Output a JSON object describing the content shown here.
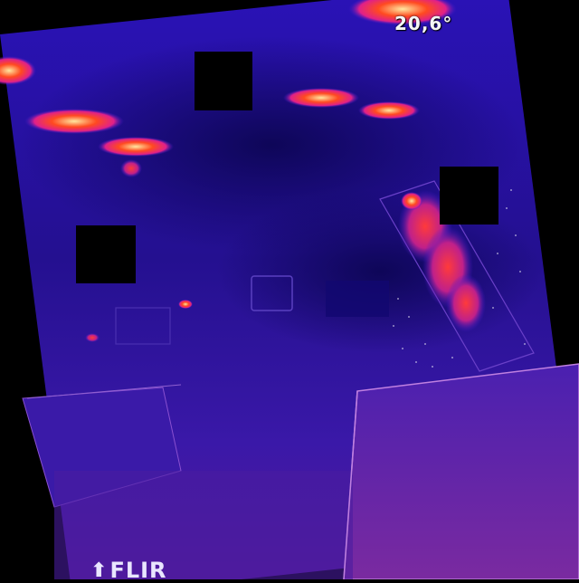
{
  "camera": {
    "temperature_readout": "20,6°",
    "brand": "FLIR",
    "brand_mark": "⬆"
  },
  "palette": {
    "background": "#000000",
    "cold": "#1a0a8a",
    "cool": "#3a1bd0",
    "mid": "#7a2bd8",
    "warm": "#e0207a",
    "hot": "#ff3a1a",
    "hottest": "#ffe37a"
  },
  "redactions": 4
}
